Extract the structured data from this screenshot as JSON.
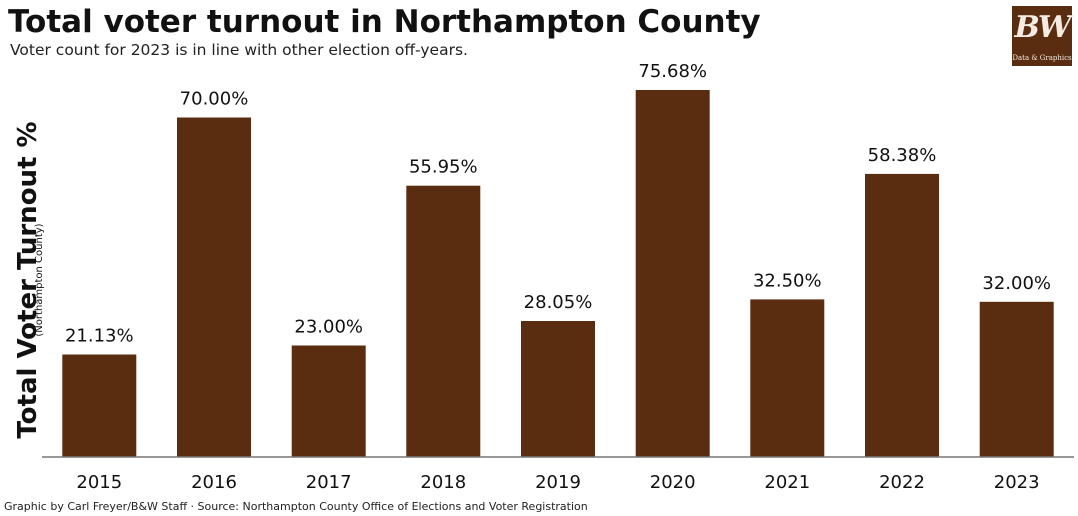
{
  "title": "Total voter turnout in Northampton County",
  "subtitle": "Voter count for 2023 is in line with other election off-years.",
  "logo": {
    "mark": "BW",
    "text": "Data & Graphics"
  },
  "footer": "Graphic by Carl Freyer/B&W Staff · Source:  Northampton County Office of Elections and Voter Registration",
  "colors": {
    "bar": "#5a2d10",
    "axis": "#777777"
  },
  "chart_data": {
    "type": "bar",
    "ylabel": "Total Voter Turnout %",
    "ysublabel": "(Northampton County)",
    "xlabel": "",
    "categories": [
      "2015",
      "2016",
      "2017",
      "2018",
      "2019",
      "2020",
      "2021",
      "2022",
      "2023"
    ],
    "values": [
      21.13,
      70.0,
      23.0,
      55.95,
      28.05,
      75.68,
      32.5,
      58.38,
      32.0
    ],
    "value_labels": [
      "21.13%",
      "70.00%",
      "23.00%",
      "55.95%",
      "28.05%",
      "75.68%",
      "32.50%",
      "58.38%",
      "32.00%"
    ],
    "ylim": [
      0,
      75.68
    ],
    "grid": false,
    "legend": "none"
  }
}
